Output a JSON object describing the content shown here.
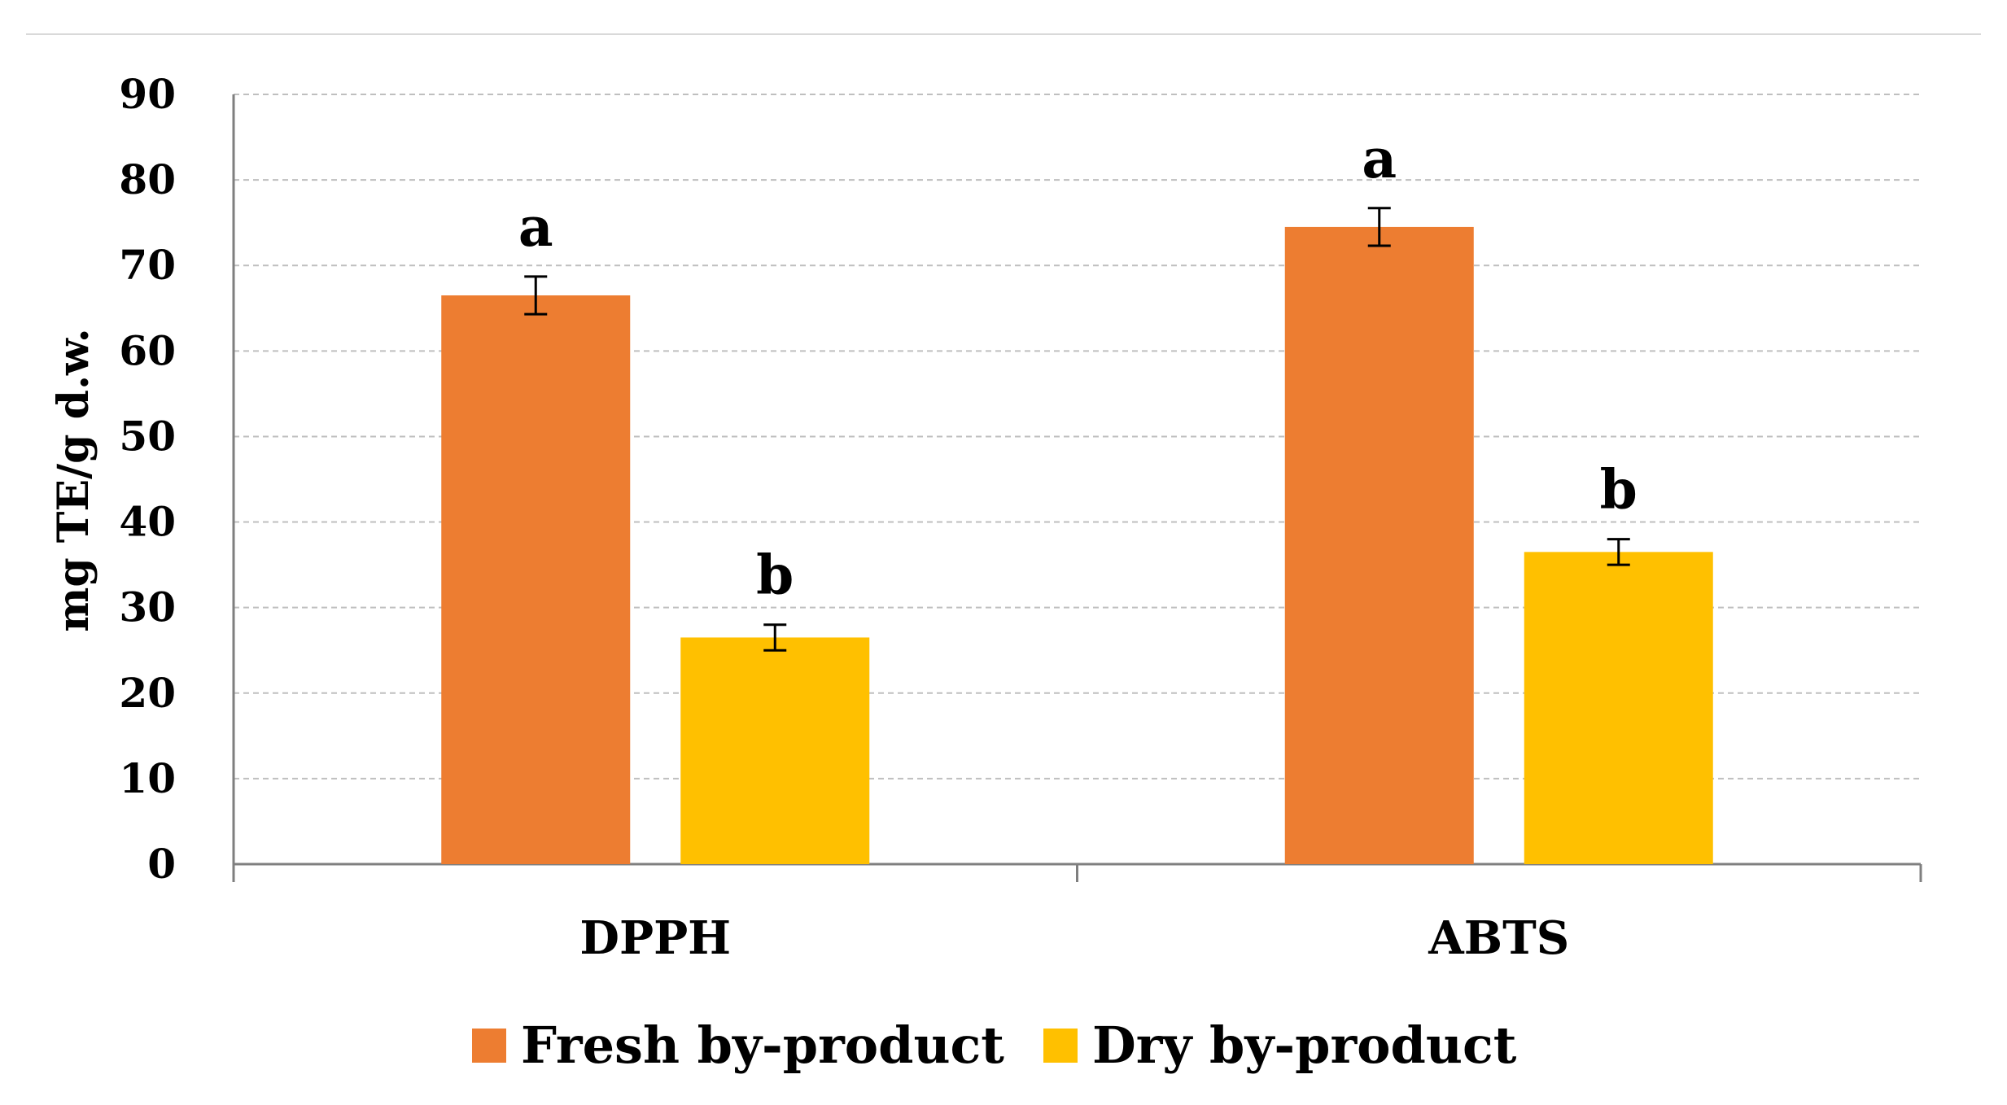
{
  "chart_data": {
    "type": "bar",
    "title": "",
    "xlabel": "",
    "ylabel": "mg TE/g d.w.",
    "ylim": [
      0,
      90
    ],
    "yticks": [
      0,
      10,
      20,
      30,
      40,
      50,
      60,
      70,
      80,
      90
    ],
    "categories": [
      "DPPH",
      "ABTS"
    ],
    "grid": true,
    "legend_position": "bottom",
    "series": [
      {
        "name": "Fresh by-product",
        "color": "#ED7D31",
        "values": [
          66.5,
          74.5
        ],
        "errors": [
          2.2,
          2.2
        ],
        "significance": [
          "a",
          "a"
        ]
      },
      {
        "name": "Dry by-product",
        "color": "#FFC000",
        "values": [
          26.5,
          36.5
        ],
        "errors": [
          1.5,
          1.5
        ],
        "significance": [
          "b",
          "b"
        ]
      }
    ]
  }
}
